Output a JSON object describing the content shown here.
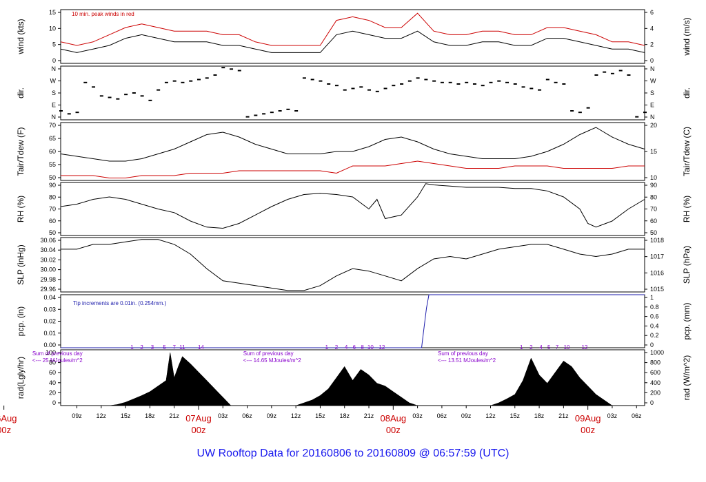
{
  "footer_title": "UW Rooftop Data for 20160806  to  20160809 @ 06:57:59  (UTC)",
  "colors": {
    "red": "#cc0000",
    "blue": "#1a1aaa",
    "purple": "#8800cc",
    "black": "#000000",
    "title": "#1a1aee"
  },
  "x_axis": {
    "tick_labels": [
      "09z",
      "12z",
      "15z",
      "18z",
      "21z",
      "03z",
      "06z",
      "09z",
      "12z",
      "15z",
      "18z",
      "21z",
      "03z",
      "06z",
      "09z",
      "12z",
      "15z",
      "18z",
      "21z",
      "03z",
      "06z"
    ],
    "tick_hours": [
      9,
      12,
      15,
      18,
      21,
      27,
      30,
      33,
      36,
      39,
      42,
      45,
      51,
      54,
      57,
      60,
      63,
      66,
      69,
      75,
      78
    ],
    "day_labels": [
      {
        "date": "06Aug",
        "time": "00z",
        "hour": 0
      },
      {
        "date": "07Aug",
        "time": "00z",
        "hour": 24
      },
      {
        "date": "08Aug",
        "time": "00z",
        "hour": 48
      },
      {
        "date": "09Aug",
        "time": "00z",
        "hour": 72
      }
    ],
    "range_hours": [
      7,
      79
    ]
  },
  "chart_data": [
    {
      "type": "line",
      "id": "wind",
      "ylabel_left": "wind (kts)",
      "ylabel_right": "wind (m/s)",
      "yticks_left": [
        "0",
        "5",
        "10",
        "15"
      ],
      "yticks_right": [
        "0",
        "2",
        "4",
        "6"
      ],
      "ylim": [
        0,
        15
      ],
      "annotation": "10 min. peak winds in red",
      "series": [
        {
          "key": "mean",
          "color": "#000000",
          "x": [
            7,
            9,
            11,
            13,
            15,
            17,
            19,
            21,
            23,
            25,
            27,
            29,
            31,
            33,
            35,
            37,
            39,
            41,
            43,
            45,
            47,
            49,
            51,
            53,
            55,
            57,
            59,
            61,
            63,
            65,
            67,
            69,
            71,
            73,
            75,
            77,
            79
          ],
          "y": [
            4,
            3,
            4,
            5,
            7,
            8,
            7,
            6,
            6,
            6,
            5,
            5,
            4,
            3,
            3,
            3,
            3,
            8,
            9,
            8,
            7,
            7,
            9,
            6,
            5,
            5,
            6,
            6,
            5,
            5,
            7,
            7,
            6,
            5,
            4,
            4,
            3
          ]
        },
        {
          "key": "peak",
          "color": "#cc0000",
          "x": [
            7,
            9,
            11,
            13,
            15,
            17,
            19,
            21,
            23,
            25,
            27,
            29,
            31,
            33,
            35,
            37,
            39,
            41,
            43,
            45,
            47,
            49,
            51,
            53,
            55,
            57,
            59,
            61,
            63,
            65,
            67,
            69,
            71,
            73,
            75,
            77,
            79
          ],
          "y": [
            6,
            5,
            6,
            8,
            10,
            11,
            10,
            9,
            9,
            9,
            8,
            8,
            6,
            5,
            5,
            5,
            5,
            12,
            13,
            12,
            10,
            10,
            14,
            9,
            8,
            8,
            9,
            9,
            8,
            8,
            10,
            10,
            9,
            8,
            6,
            6,
            5
          ]
        }
      ]
    },
    {
      "type": "scatter",
      "id": "dir",
      "ylabel_left": "dir.",
      "ylabel_right": "dir.",
      "yticks_left": [
        "N",
        "E",
        "S",
        "W",
        "N"
      ],
      "yticks_right": [
        "N",
        "E",
        "S",
        "W",
        "N"
      ],
      "ylim": [
        0,
        360
      ],
      "series": [
        {
          "key": "dir",
          "color": "#000000",
          "x": [
            7,
            8,
            9,
            10,
            11,
            12,
            13,
            14,
            15,
            16,
            17,
            18,
            19,
            20,
            21,
            22,
            23,
            24,
            25,
            26,
            27,
            28,
            29,
            30,
            31,
            32,
            33,
            34,
            35,
            36,
            37,
            38,
            39,
            40,
            41,
            42,
            43,
            44,
            45,
            46,
            47,
            48,
            49,
            50,
            51,
            52,
            53,
            54,
            55,
            56,
            57,
            58,
            59,
            60,
            61,
            62,
            63,
            64,
            65,
            66,
            67,
            68,
            69,
            70,
            71,
            72,
            73,
            74,
            75,
            76,
            77,
            78,
            79
          ],
          "y": [
            60,
            40,
            50,
            250,
            220,
            160,
            150,
            140,
            170,
            180,
            160,
            130,
            200,
            250,
            260,
            250,
            260,
            270,
            280,
            300,
            350,
            340,
            330,
            20,
            30,
            40,
            50,
            60,
            70,
            60,
            280,
            270,
            260,
            240,
            230,
            200,
            210,
            220,
            200,
            190,
            210,
            230,
            240,
            260,
            280,
            270,
            260,
            250,
            250,
            240,
            250,
            240,
            230,
            250,
            260,
            250,
            240,
            220,
            210,
            200,
            270,
            250,
            240,
            60,
            50,
            80,
            300,
            320,
            310,
            330,
            300,
            20,
            50
          ]
        }
      ]
    },
    {
      "type": "line",
      "id": "temp",
      "ylabel_left": "Tair/Tdew (F)",
      "ylabel_right": "Tair/Tdew (C)",
      "yticks_left": [
        "50",
        "55",
        "60",
        "65",
        "70"
      ],
      "yticks_right": [
        "10",
        "15",
        "20"
      ],
      "ylim": [
        49,
        73
      ],
      "series": [
        {
          "key": "tair",
          "color": "#000000",
          "x": [
            7,
            9,
            11,
            13,
            15,
            17,
            19,
            21,
            23,
            25,
            27,
            29,
            31,
            33,
            35,
            37,
            39,
            41,
            43,
            45,
            47,
            49,
            51,
            53,
            55,
            57,
            59,
            61,
            63,
            65,
            67,
            69,
            71,
            73,
            75,
            77,
            79
          ],
          "y": [
            60,
            59,
            58,
            57,
            57,
            58,
            60,
            62,
            65,
            68,
            69,
            67,
            64,
            62,
            60,
            60,
            60,
            61,
            61,
            63,
            66,
            67,
            65,
            62,
            60,
            59,
            58,
            58,
            58,
            59,
            61,
            64,
            68,
            71,
            67,
            64,
            62
          ]
        },
        {
          "key": "tdew",
          "color": "#cc0000",
          "x": [
            7,
            9,
            11,
            13,
            15,
            17,
            19,
            21,
            23,
            25,
            27,
            29,
            31,
            33,
            35,
            37,
            39,
            41,
            43,
            45,
            47,
            49,
            51,
            53,
            55,
            57,
            59,
            61,
            63,
            65,
            67,
            69,
            71,
            73,
            75,
            77,
            79
          ],
          "y": [
            51,
            51,
            51,
            50,
            50,
            51,
            51,
            51,
            52,
            52,
            52,
            53,
            53,
            53,
            53,
            53,
            53,
            52,
            55,
            55,
            55,
            56,
            57,
            56,
            55,
            54,
            54,
            54,
            55,
            55,
            55,
            54,
            54,
            54,
            54,
            55,
            55
          ]
        }
      ]
    },
    {
      "type": "line",
      "id": "rh",
      "ylabel_left": "RH (%)",
      "ylabel_right": "RH (%)",
      "yticks_left": [
        "50",
        "60",
        "70",
        "80",
        "90"
      ],
      "yticks_right": [
        "50",
        "60",
        "70",
        "80",
        "90"
      ],
      "ylim": [
        48,
        92
      ],
      "series": [
        {
          "key": "rh",
          "color": "#000000",
          "x": [
            7,
            9,
            11,
            13,
            15,
            17,
            19,
            21,
            23,
            25,
            27,
            29,
            31,
            33,
            35,
            37,
            39,
            41,
            43,
            45,
            46,
            47,
            49,
            51,
            52,
            53,
            55,
            57,
            59,
            61,
            63,
            65,
            67,
            69,
            71,
            72,
            73,
            75,
            77,
            79
          ],
          "y": [
            72,
            74,
            78,
            80,
            78,
            74,
            70,
            67,
            60,
            55,
            54,
            58,
            65,
            72,
            78,
            82,
            83,
            82,
            80,
            70,
            78,
            62,
            65,
            80,
            91,
            90,
            89,
            88,
            88,
            88,
            87,
            87,
            85,
            80,
            70,
            58,
            55,
            60,
            70,
            78
          ]
        }
      ]
    },
    {
      "type": "line",
      "id": "slp",
      "ylabel_left": "SLP (inHg)",
      "ylabel_right": "SLP (hPa)",
      "yticks_left": [
        "29.96",
        "29.98",
        "30.00",
        "30.02",
        "30.04",
        "30.06"
      ],
      "yticks_right": [
        "1015",
        "1016",
        "1017",
        "1018"
      ],
      "ylim": [
        29.952,
        30.064
      ],
      "series": [
        {
          "key": "slp",
          "color": "#000000",
          "x": [
            7,
            9,
            11,
            13,
            15,
            17,
            19,
            21,
            23,
            25,
            27,
            29,
            31,
            33,
            35,
            37,
            39,
            41,
            43,
            45,
            47,
            49,
            51,
            53,
            55,
            57,
            59,
            61,
            63,
            65,
            67,
            69,
            71,
            73,
            75,
            77,
            79
          ],
          "y": [
            30.04,
            30.04,
            30.05,
            30.05,
            30.055,
            30.06,
            30.06,
            30.05,
            30.03,
            30.0,
            29.975,
            29.97,
            29.965,
            29.96,
            29.955,
            29.955,
            29.965,
            29.985,
            30.0,
            29.995,
            29.985,
            29.975,
            30.0,
            30.02,
            30.025,
            30.02,
            30.03,
            30.04,
            30.045,
            30.05,
            30.05,
            30.04,
            30.03,
            30.025,
            30.03,
            30.04,
            30.04
          ]
        }
      ]
    },
    {
      "type": "line",
      "id": "pcp",
      "ylabel_left": "pcp. (in)",
      "ylabel_right": "pcp. (mm)",
      "yticks_left": [
        "0.00",
        "0.01",
        "0.02",
        "0.03",
        "0.04"
      ],
      "yticks_right": [
        "0",
        "0.2",
        "0.4",
        "0.6",
        "0.8",
        "1"
      ],
      "ylim": [
        0,
        0.04
      ],
      "annotation": "Tip increments are 0.01in. (0.254mm.)",
      "series": [
        {
          "key": "pcp",
          "color": "#1a1aaa",
          "x": [
            7,
            51.5,
            51.7,
            51.9,
            52.1,
            52.4,
            79
          ],
          "y": [
            0,
            0,
            0.01,
            0.02,
            0.03,
            0.04,
            0.04
          ]
        }
      ]
    },
    {
      "type": "area",
      "id": "rad",
      "ylabel_left": "rad(Lgly/hr)",
      "ylabel_right": "rad (W/m^2)",
      "yticks_left": [
        "0",
        "20",
        "40",
        "60",
        "80",
        "100"
      ],
      "yticks_right": [
        "0",
        "200",
        "400",
        "600",
        "800",
        "1000"
      ],
      "ylim": [
        0,
        100
      ],
      "day_annotations": [
        {
          "l1": "Sum of previous day",
          "l2": "<--- 25 MJoules/m^2",
          "hour": 3.5
        },
        {
          "l1": "Sum of previous day",
          "l2": "<--- 14.65 MJoules/m^2",
          "hour": 29.5
        },
        {
          "l1": "Sum of previous day",
          "l2": "<--- 13.51 MJoules/m^2",
          "hour": 53.5
        }
      ],
      "cloud_markers": [
        {
          "labels": [
            "1",
            "2",
            "3",
            "5",
            "7",
            "11",
            "14"
          ],
          "hours": [
            15.8,
            17.0,
            18.3,
            19.8,
            21.0,
            22.0,
            24.3
          ]
        },
        {
          "labels": [
            "1",
            "2",
            "4",
            "6",
            "8",
            "10",
            "12"
          ],
          "hours": [
            39.8,
            41.0,
            42.2,
            43.2,
            44.2,
            45.2,
            46.6
          ]
        },
        {
          "labels": [
            "1",
            "2",
            "4",
            "5",
            "7",
            "10",
            "12"
          ],
          "hours": [
            63.8,
            65.0,
            66.2,
            67.2,
            68.2,
            69.4,
            71.6
          ]
        }
      ],
      "series": [
        {
          "key": "rad",
          "color": "#000000",
          "x": [
            7,
            13,
            14,
            15,
            16,
            17,
            18,
            19,
            20,
            20.5,
            21,
            21.5,
            22,
            23,
            24,
            25,
            26,
            27,
            28,
            36,
            37,
            38,
            39,
            40,
            41,
            42,
            43,
            44,
            45,
            46,
            47,
            48,
            49,
            50,
            51,
            60,
            61,
            62,
            63,
            64,
            65,
            66,
            67,
            68,
            69,
            70,
            71,
            72,
            73,
            74,
            75,
            79
          ],
          "y": [
            0,
            0,
            2,
            6,
            12,
            18,
            25,
            35,
            45,
            95,
            50,
            70,
            88,
            75,
            60,
            45,
            30,
            15,
            0,
            0,
            5,
            10,
            18,
            30,
            50,
            70,
            45,
            65,
            55,
            40,
            35,
            25,
            15,
            5,
            0,
            0,
            5,
            12,
            20,
            45,
            85,
            55,
            40,
            60,
            80,
            70,
            50,
            35,
            20,
            10,
            0,
            0
          ]
        }
      ]
    }
  ]
}
